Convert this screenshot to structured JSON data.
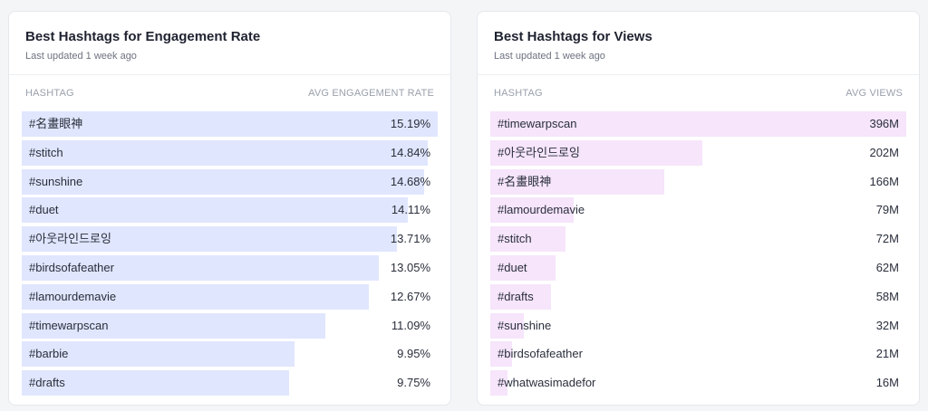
{
  "engagement": {
    "title": "Best Hashtags for Engagement Rate",
    "subtitle": "Last updated 1 week ago",
    "col_hashtag": "HASHTAG",
    "col_metric": "AVG ENGAGEMENT RATE",
    "rows": [
      {
        "tag": "#名畫眼神",
        "value": "15.19%",
        "num": 15.19
      },
      {
        "tag": "#stitch",
        "value": "14.84%",
        "num": 14.84
      },
      {
        "tag": "#sunshine",
        "value": "14.68%",
        "num": 14.68
      },
      {
        "tag": "#duet",
        "value": "14.11%",
        "num": 14.11
      },
      {
        "tag": "#아웃라인드로잉",
        "value": "13.71%",
        "num": 13.71
      },
      {
        "tag": "#birdsofafeather",
        "value": "13.05%",
        "num": 13.05
      },
      {
        "tag": "#lamourdemavie",
        "value": "12.67%",
        "num": 12.67
      },
      {
        "tag": "#timewarpscan",
        "value": "11.09%",
        "num": 11.09
      },
      {
        "tag": "#barbie",
        "value": "9.95%",
        "num": 9.95
      },
      {
        "tag": "#drafts",
        "value": "9.75%",
        "num": 9.75
      }
    ]
  },
  "views": {
    "title": "Best Hashtags for Views",
    "subtitle": "Last updated 1 week ago",
    "col_hashtag": "HASHTAG",
    "col_metric": "AVG VIEWS",
    "rows": [
      {
        "tag": "#timewarpscan",
        "value": "396M",
        "num": 396
      },
      {
        "tag": "#아웃라인드로잉",
        "value": "202M",
        "num": 202
      },
      {
        "tag": "#名畫眼神",
        "value": "166M",
        "num": 166
      },
      {
        "tag": "#lamourdemavie",
        "value": "79M",
        "num": 79
      },
      {
        "tag": "#stitch",
        "value": "72M",
        "num": 72
      },
      {
        "tag": "#duet",
        "value": "62M",
        "num": 62
      },
      {
        "tag": "#drafts",
        "value": "58M",
        "num": 58
      },
      {
        "tag": "#sunshine",
        "value": "32M",
        "num": 32
      },
      {
        "tag": "#birdsofafeather",
        "value": "21M",
        "num": 21
      },
      {
        "tag": "#whatwasimadefor",
        "value": "16M",
        "num": 16
      }
    ]
  },
  "colors": {
    "engagement_bar": "#e0e6fd",
    "views_bar": "#f6e5fb"
  }
}
